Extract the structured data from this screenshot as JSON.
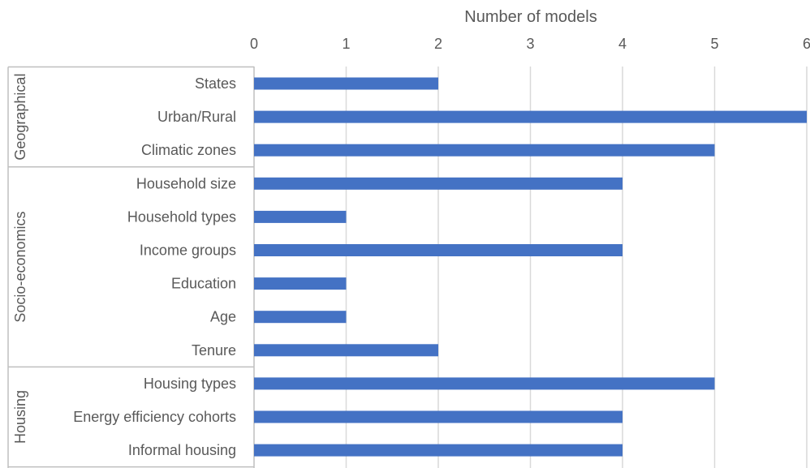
{
  "chart_data": {
    "type": "bar",
    "orientation": "horizontal",
    "xlabel": "Number of models",
    "xlim": [
      0,
      6
    ],
    "x_ticks": [
      0,
      1,
      2,
      3,
      4,
      5,
      6
    ],
    "x_tick_labels": [
      "0",
      "1",
      "2",
      "3",
      "4",
      "5",
      "6"
    ],
    "grid": true,
    "axis_position": "top",
    "bar_color": "#4472C4",
    "groups": [
      {
        "name": "Geographical",
        "categories": [
          "States",
          "Urban/Rural",
          "Climatic zones"
        ]
      },
      {
        "name": "Socio-economics",
        "categories": [
          "Household size",
          "Household types ",
          "Income groups",
          "Education",
          "Age",
          "Tenure"
        ]
      },
      {
        "name": "Housing",
        "categories": [
          "Housing types",
          "Energy efficiency cohorts",
          "Informal housing"
        ]
      }
    ],
    "categories": [
      "States",
      "Urban/Rural",
      "Climatic zones",
      "Household size",
      "Household types ",
      "Income groups",
      "Education",
      "Age",
      "Tenure",
      "Housing types",
      "Energy efficiency cohorts",
      "Informal housing"
    ],
    "values": [
      2,
      6,
      5,
      4,
      1,
      4,
      1,
      1,
      2,
      5,
      4,
      4
    ]
  }
}
